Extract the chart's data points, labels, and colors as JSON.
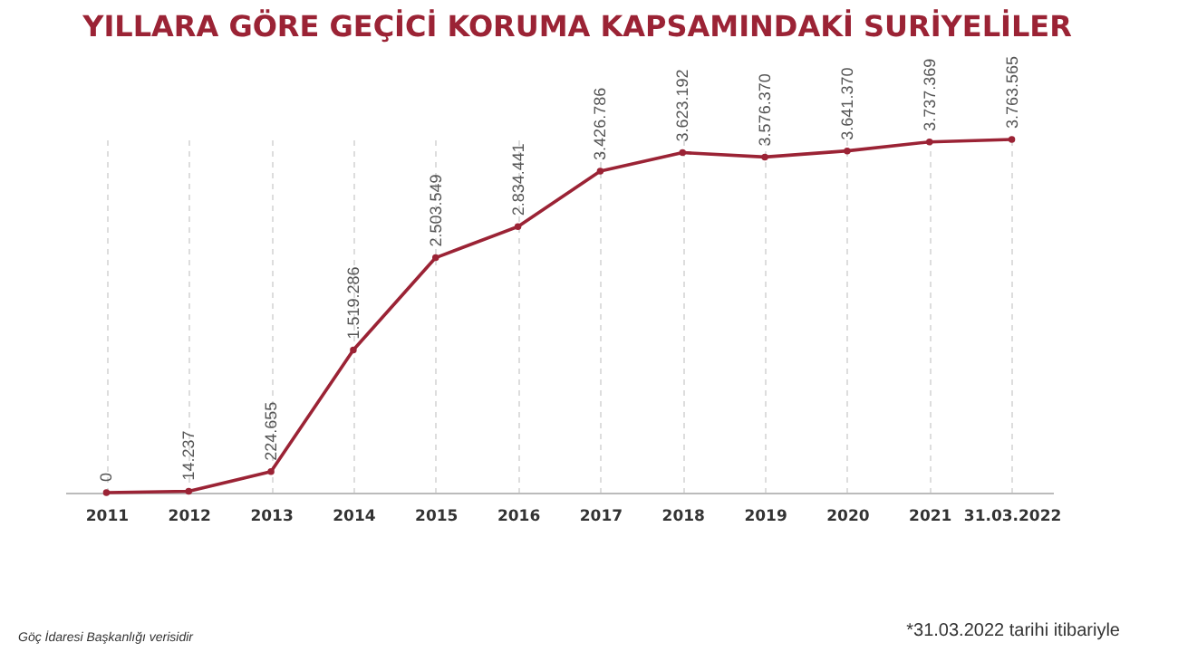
{
  "chart_data": {
    "type": "line",
    "title": "YILLARA GÖRE GEÇİCİ KORUMA KAPSAMINDAKİ SURİYELİLER",
    "categories": [
      "2011",
      "2012",
      "2013",
      "2014",
      "2015",
      "2016",
      "2017",
      "2018",
      "2019",
      "2020",
      "2021",
      "31.03.2022"
    ],
    "series": [
      {
        "color": "#9b2335",
        "values": [
          0,
          14237,
          224655,
          1519286,
          2503549,
          2834441,
          3426786,
          3623192,
          3576370,
          3641370,
          3737369,
          3763565
        ],
        "value_labels": [
          "0",
          "14.237",
          "224.655",
          "1.519.286",
          "2.503.549",
          "2.834.441",
          "3.426.786",
          "3.623.192",
          "3.576.370",
          "3.641.370",
          "3.737.369",
          "3.763.565"
        ]
      }
    ],
    "grid": "x",
    "marker": "circle",
    "line_style": "solid",
    "tick_labels": "x",
    "annotations": [
      "*31.03.2022 tarihi itibariyle",
      "Göç İdaresi Başkanlığı verisidir"
    ]
  }
}
